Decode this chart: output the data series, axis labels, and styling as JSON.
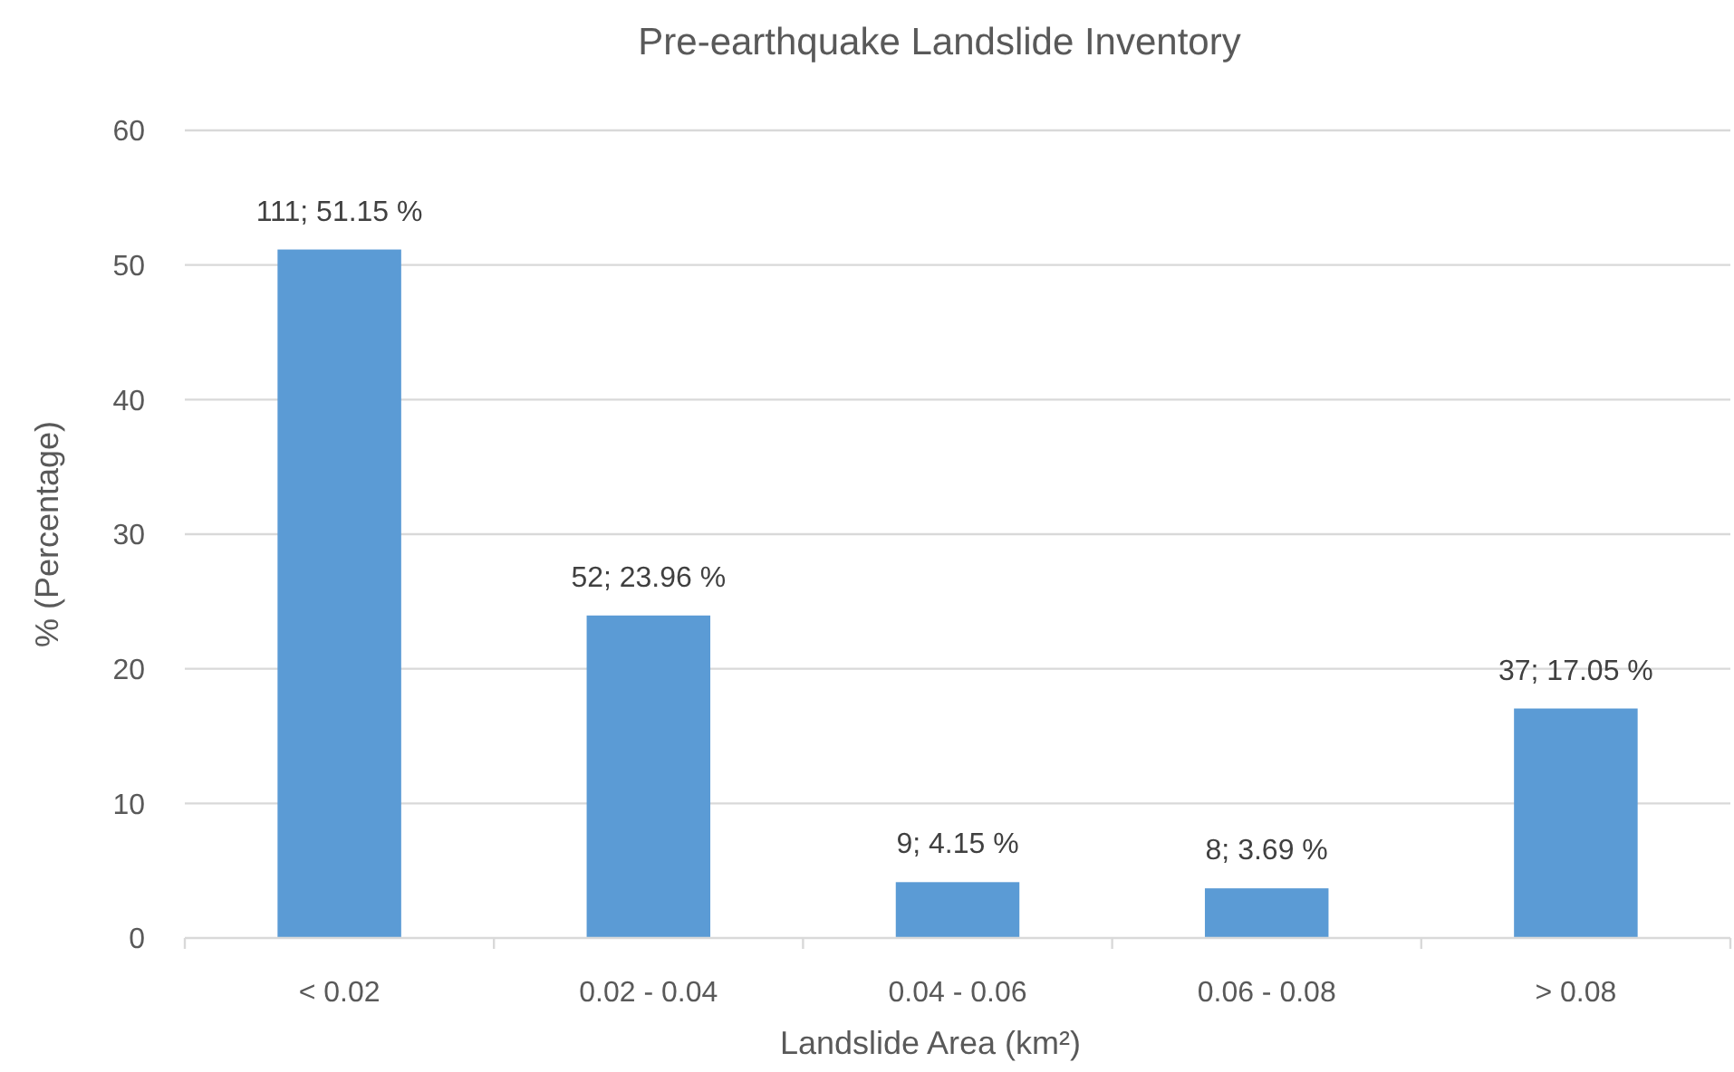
{
  "chart_data": {
    "type": "bar",
    "title": "Pre-earthquake Landslide Inventory",
    "xlabel": "Landslide Area (km²)",
    "ylabel": "% (Percentage)",
    "categories": [
      "< 0.02",
      "0.02 - 0.04",
      "0.04 - 0.06",
      "0.06 - 0.08",
      "> 0.08"
    ],
    "values": [
      51.15,
      23.96,
      4.15,
      3.69,
      17.05
    ],
    "color": "#5b9bd5",
    "value_labels": [
      "111; 51.15 %",
      "52; 23.96 %",
      "9; 4.15 %",
      "8; 3.69 %",
      "37; 17.05 %"
    ],
    "ylim": [
      0,
      60
    ],
    "yticks": [
      0,
      10,
      20,
      30,
      40,
      50,
      60
    ],
    "grid": "y"
  }
}
